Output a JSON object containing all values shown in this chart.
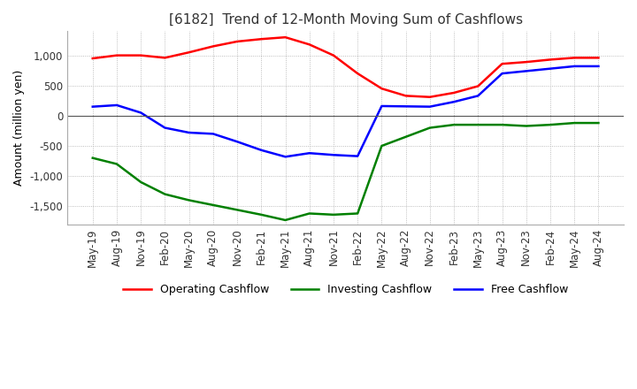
{
  "title": "[6182]  Trend of 12-Month Moving Sum of Cashflows",
  "ylabel": "Amount (million yen)",
  "ylim": [
    -1800,
    1400
  ],
  "yticks": [
    -1500,
    -1000,
    -500,
    0,
    500,
    1000
  ],
  "background_color": "#ffffff",
  "plot_bg_color": "#ffffff",
  "grid_color": "#aaaaaa",
  "dates": [
    "May-19",
    "Aug-19",
    "Nov-19",
    "Feb-20",
    "May-20",
    "Aug-20",
    "Nov-20",
    "Feb-21",
    "May-21",
    "Aug-21",
    "Nov-21",
    "Feb-22",
    "May-22",
    "Aug-22",
    "Nov-22",
    "Feb-23",
    "May-23",
    "Aug-23",
    "Nov-23",
    "Feb-24",
    "May-24",
    "Aug-24"
  ],
  "operating": [
    950,
    1000,
    1000,
    960,
    1050,
    1150,
    1230,
    1270,
    1300,
    1180,
    1000,
    700,
    450,
    330,
    310,
    380,
    490,
    860,
    890,
    930,
    960,
    960
  ],
  "investing": [
    -700,
    -800,
    -1100,
    -1300,
    -1400,
    -1480,
    -1560,
    -1640,
    -1730,
    -1620,
    -1640,
    -1620,
    -500,
    -350,
    -200,
    -150,
    -150,
    -150,
    -170,
    -150,
    -120,
    -120
  ],
  "free": [
    150,
    175,
    50,
    -200,
    -280,
    -300,
    -430,
    -570,
    -680,
    -620,
    -650,
    -670,
    160,
    155,
    150,
    230,
    330,
    700,
    740,
    780,
    820,
    820
  ],
  "operating_color": "#ff0000",
  "investing_color": "#008000",
  "free_color": "#0000ff",
  "line_width": 1.8
}
